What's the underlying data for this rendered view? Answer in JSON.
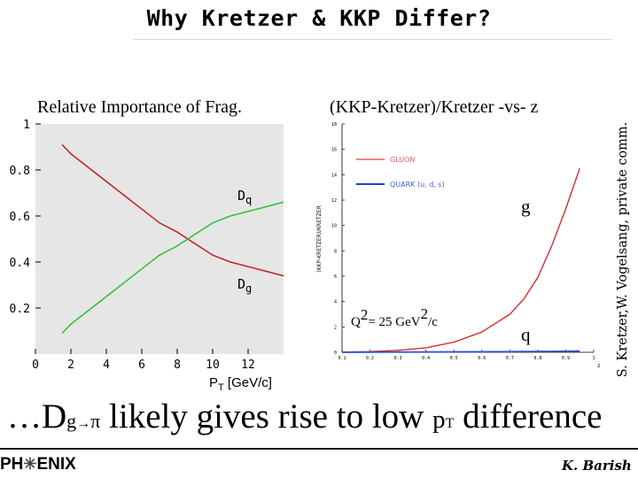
{
  "slide": {
    "title": "Why Kretzer & KKP Differ?",
    "side_note": "S. Kretzer,W. Vogelsang, private comm.",
    "bottom_line": {
      "prefix": "…D",
      "sub1": "g",
      "arrow": "→",
      "sub2": "π",
      "middle": " likely gives rise to low ",
      "p": "p",
      "sub3": "T",
      "suffix": " difference"
    },
    "logo": {
      "left": "PH",
      "star": "✳",
      "right": "ENIX"
    },
    "author": "K. Barish"
  },
  "chart_data": [
    {
      "type": "line",
      "title": "Relative Importance of Frag.",
      "xlabel": "P_T [GeV/c]",
      "xlabel_main": "P",
      "xlabel_sub": "T",
      "xlabel_tail": " [GeV/c]",
      "xlim": [
        0,
        14
      ],
      "ylim": [
        0,
        1
      ],
      "xticks": [
        0,
        2,
        4,
        6,
        8,
        10,
        12
      ],
      "yticks": [
        0.2,
        0.4,
        0.6,
        0.8,
        1
      ],
      "ytick_labels": [
        "0.2",
        "0.4",
        "0.6",
        "0.8",
        "1"
      ],
      "series": [
        {
          "name": "Dq",
          "label_main": "D",
          "label_sub": "q",
          "color": "#c02020",
          "x": [
            1.5,
            2,
            3,
            4,
            5,
            6,
            7,
            8,
            9,
            10,
            11,
            12,
            13,
            14
          ],
          "y": [
            0.91,
            0.87,
            0.81,
            0.75,
            0.69,
            0.63,
            0.57,
            0.53,
            0.48,
            0.43,
            0.4,
            0.38,
            0.36,
            0.34
          ]
        },
        {
          "name": "Dg",
          "label_main": "D",
          "label_sub": "g",
          "color": "#30c030",
          "x": [
            1.5,
            2,
            3,
            4,
            5,
            6,
            7,
            8,
            9,
            10,
            11,
            12,
            13,
            14
          ],
          "y": [
            0.09,
            0.13,
            0.19,
            0.25,
            0.31,
            0.37,
            0.43,
            0.47,
            0.52,
            0.57,
            0.6,
            0.62,
            0.64,
            0.66
          ]
        }
      ]
    },
    {
      "type": "line",
      "title": "(KKP-Kretzer)/Kretzer -vs- z",
      "ylabel": "(KKP-KRETZER)/KRETZER",
      "xlim": [
        0.1,
        1.0
      ],
      "ylim": [
        0,
        18
      ],
      "xticks": [
        0.1,
        0.2,
        0.3,
        0.4,
        0.5,
        0.6,
        0.7,
        0.8,
        0.9,
        1.0
      ],
      "xtick_labels": [
        "0.1",
        "0.2",
        "0.3",
        "0.4",
        "0.5",
        "0.6",
        "0.7",
        "0.8",
        "0.9",
        "1"
      ],
      "yticks": [
        0,
        2,
        4,
        6,
        8,
        10,
        12,
        14,
        16,
        18
      ],
      "ytick_labels": [
        "0",
        "2",
        "4",
        "6",
        "8",
        "10",
        "12",
        "14",
        "16",
        "18"
      ],
      "xaxis_end_label": "z",
      "annotation": {
        "q": "Q",
        "sup1": "2",
        "eq": "= 25 GeV",
        "sup2": "2",
        "tail": "/c"
      },
      "legend": [
        {
          "name": "GLUON",
          "color": "#e06060"
        },
        {
          "name": "QUARK (u, d, s)",
          "color": "#4060e0"
        }
      ],
      "curve_labels": {
        "g": "g",
        "q": "q"
      },
      "series": [
        {
          "name": "GLUON",
          "color": "#d03030",
          "x": [
            0.1,
            0.2,
            0.3,
            0.4,
            0.5,
            0.6,
            0.7,
            0.75,
            0.8,
            0.85,
            0.9,
            0.95
          ],
          "y": [
            0.02,
            0.06,
            0.15,
            0.35,
            0.8,
            1.6,
            3.0,
            4.2,
            5.9,
            8.4,
            11.3,
            14.5
          ]
        },
        {
          "name": "QUARK (u, d, s)",
          "color": "#3050d0",
          "x": [
            0.1,
            0.3,
            0.5,
            0.7,
            0.9,
            0.95
          ],
          "y": [
            0,
            0.02,
            0.03,
            0.05,
            0.08,
            0.1
          ]
        }
      ]
    }
  ]
}
